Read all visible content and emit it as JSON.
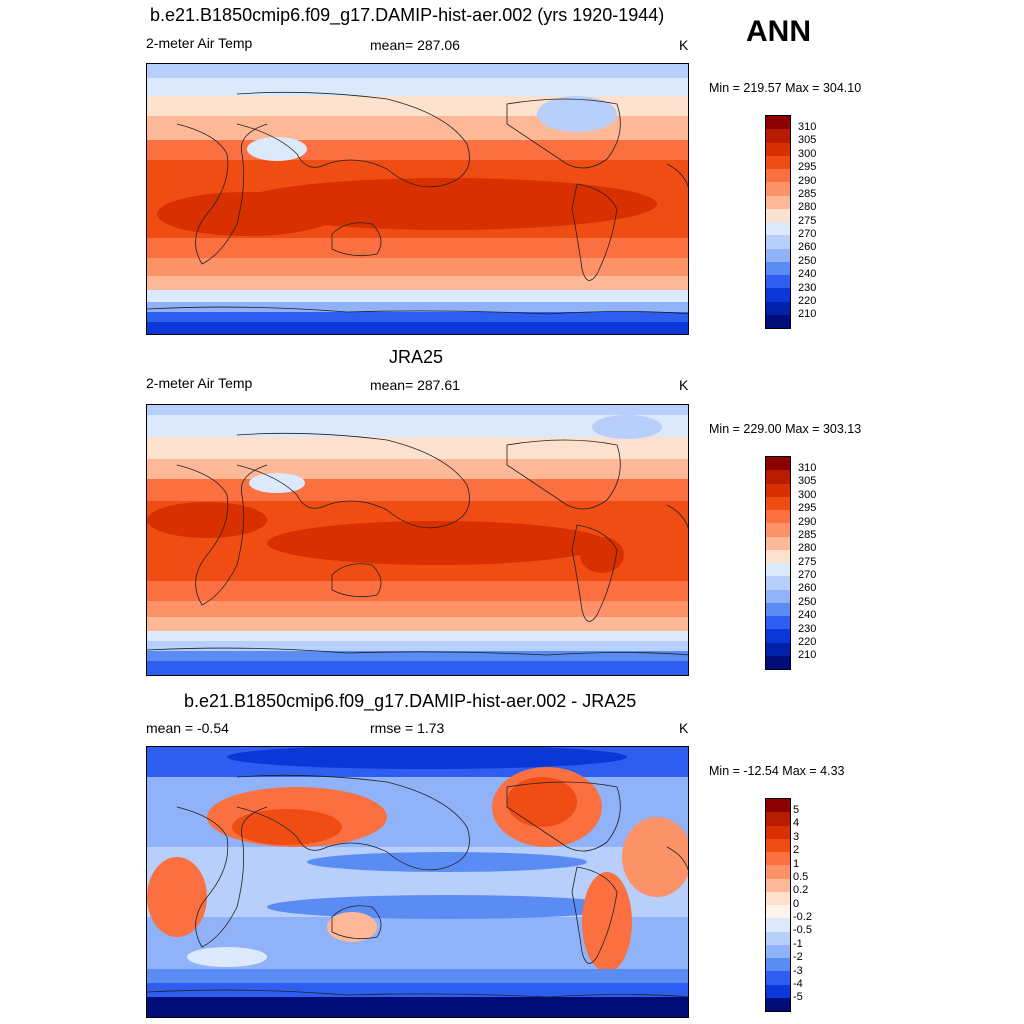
{
  "season": "ANN",
  "panels": [
    {
      "title": "b.e21.B1850cmip6.f09_g17.DAMIP-hist-aer.002 (yrs 1920-1944)",
      "left_label": "2-meter Air Temp",
      "center_label": "mean= 287.06",
      "units": "K",
      "minmax": "Min = 219.57 Max = 304.10",
      "colorbar_labels": [
        "310",
        "305",
        "300",
        "295",
        "290",
        "285",
        "280",
        "275",
        "270",
        "260",
        "250",
        "240",
        "230",
        "220",
        "210"
      ]
    },
    {
      "title": "JRA25",
      "left_label": "2-meter Air Temp",
      "center_label": "mean= 287.61",
      "units": "K",
      "minmax": "Min = 229.00 Max = 303.13",
      "colorbar_labels": [
        "310",
        "305",
        "300",
        "295",
        "290",
        "285",
        "280",
        "275",
        "270",
        "260",
        "250",
        "240",
        "230",
        "220",
        "210"
      ]
    },
    {
      "title": "b.e21.B1850cmip6.f09_g17.DAMIP-hist-aer.002 - JRA25",
      "left_label": "mean =  -0.54",
      "center_label": "rmse =   1.73",
      "units": "K",
      "minmax": "Min = -12.54 Max =   4.33",
      "colorbar_labels": [
        "5",
        "4",
        "3",
        "2",
        "1",
        "0.5",
        "0.2",
        "0",
        "-0.2",
        "-0.5",
        "-1",
        "-2",
        "-3",
        "-4",
        "-5"
      ]
    }
  ],
  "colors": {
    "abs_scale": [
      "#8b0000",
      "#b81c00",
      "#d83000",
      "#f04d15",
      "#fa7040",
      "#fc9268",
      "#fdb897",
      "#fde1cf",
      "#dce9fb",
      "#b7cffa",
      "#8fb2f8",
      "#5b8cf4",
      "#2d5ef0",
      "#0b36d8",
      "#0020a8",
      "#000c78"
    ],
    "diff_scale": [
      "#8b0000",
      "#b81c00",
      "#d83000",
      "#f04d15",
      "#fa7040",
      "#fc9268",
      "#fdb897",
      "#fde1cf",
      "#fff3ea",
      "#dce9fb",
      "#b7cffa",
      "#8fb2f8",
      "#5b8cf4",
      "#2d5ef0",
      "#0b36d8",
      "#000c78"
    ]
  }
}
